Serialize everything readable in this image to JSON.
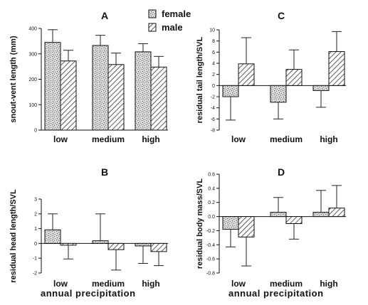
{
  "legend": {
    "female": "female",
    "male": "male"
  },
  "x_title": "annual precipitation",
  "colors": {
    "ink": "#111111",
    "female_fill": "#d8d8d8",
    "female_speckle": "#555555",
    "male_hatch": "#333333"
  },
  "chart_data": [
    {
      "id": "A",
      "type": "bar",
      "title": "A",
      "ylabel": "snout-vent length (mm)",
      "categories": [
        "low",
        "medium",
        "high"
      ],
      "ylim": [
        0,
        400
      ],
      "yticks": [
        0,
        100,
        200,
        300,
        400
      ],
      "series": [
        {
          "name": "female",
          "values": [
            345,
            333,
            308
          ],
          "errors": [
            50,
            40,
            32
          ]
        },
        {
          "name": "male",
          "values": [
            272,
            258,
            248
          ],
          "errors": [
            42,
            45,
            42
          ]
        }
      ]
    },
    {
      "id": "C",
      "type": "bar",
      "title": "C",
      "ylabel": "residual tail length/SVL",
      "categories": [
        "low",
        "medium",
        "high"
      ],
      "ylim": [
        -8,
        10
      ],
      "yticks": [
        -8,
        -6,
        -4,
        -2,
        0,
        2,
        4,
        6,
        8,
        10
      ],
      "series": [
        {
          "name": "female",
          "values": [
            -2.0,
            -3.0,
            -0.9
          ],
          "errors": [
            4.2,
            3.0,
            3.0
          ]
        },
        {
          "name": "male",
          "values": [
            3.9,
            2.9,
            6.1
          ],
          "errors": [
            4.7,
            3.5,
            3.6
          ]
        }
      ]
    },
    {
      "id": "B",
      "type": "bar",
      "title": "B",
      "ylabel": "residual head length/SVL",
      "categories": [
        "low",
        "medium",
        "high"
      ],
      "ylim": [
        -2,
        3
      ],
      "yticks": [
        -2,
        -1,
        0,
        1,
        2,
        3
      ],
      "series": [
        {
          "name": "female",
          "values": [
            0.92,
            0.18,
            -0.17
          ],
          "errors": [
            1.08,
            1.82,
            1.18
          ]
        },
        {
          "name": "male",
          "values": [
            -0.12,
            -0.42,
            -0.55
          ],
          "errors": [
            0.93,
            1.38,
            0.95
          ]
        }
      ]
    },
    {
      "id": "D",
      "type": "bar",
      "title": "D",
      "ylabel": "residual body mass/SVL",
      "categories": [
        "low",
        "medium",
        "high"
      ],
      "ylim": [
        -0.8,
        0.6
      ],
      "yticks": [
        -0.8,
        -0.6,
        -0.4,
        -0.2,
        0.0,
        0.2,
        0.4,
        0.6
      ],
      "ytick_labels": [
        "-0.8",
        "-0.6",
        "-0.4",
        "-0.2",
        "0.0",
        "0.2",
        "0.4",
        "0.6"
      ],
      "series": [
        {
          "name": "female",
          "values": [
            -0.18,
            0.06,
            0.06
          ],
          "errors": [
            0.25,
            0.21,
            0.31
          ]
        },
        {
          "name": "male",
          "values": [
            -0.29,
            -0.1,
            0.12
          ],
          "errors": [
            0.41,
            0.22,
            0.32
          ]
        }
      ]
    }
  ]
}
